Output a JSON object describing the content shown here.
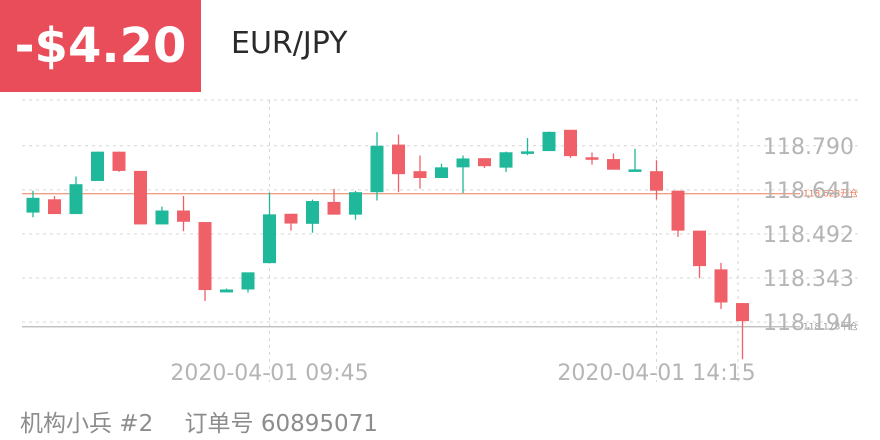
{
  "header": {
    "pnl": "-$4.20",
    "symbol": "EUR/JPY"
  },
  "footer": {
    "trader": "机构小兵 #2",
    "order_label": "订单号",
    "order_number": "60895071"
  },
  "colors": {
    "up": "#1fb89a",
    "down": "#ef6068",
    "badge": "#ea4d5a",
    "open_line": "#f0a08a",
    "close_line": "#b8b8b8",
    "grid": "#d6d6d6",
    "axis_text": "#b5b5b5"
  },
  "chart_data": {
    "type": "candlestick",
    "title": "",
    "xlabel": "",
    "ylabel": "",
    "ylim": [
      118.03,
      118.87
    ],
    "yticks": [
      118.79,
      118.641,
      118.492,
      118.343,
      118.194
    ],
    "ytick_labels": [
      "118.790",
      "118.641",
      "118.492",
      "118.343",
      "118.194"
    ],
    "xtick_labels": [
      "2020-04-01 09:45",
      "2020-04-01 14:15"
    ],
    "xtick_index": [
      11,
      29
    ],
    "grid": true,
    "reference_lines": [
      {
        "label": "118.628开仓",
        "value": 118.628,
        "role": "open"
      },
      {
        "label": "118.178平仓",
        "value": 118.178,
        "role": "close"
      }
    ],
    "candles": [
      {
        "o": 118.564,
        "h": 118.638,
        "l": 118.548,
        "c": 118.614
      },
      {
        "o": 118.609,
        "h": 118.62,
        "l": 118.559,
        "c": 118.559
      },
      {
        "o": 118.559,
        "h": 118.686,
        "l": 118.559,
        "c": 118.66
      },
      {
        "o": 118.671,
        "h": 118.77,
        "l": 118.671,
        "c": 118.77
      },
      {
        "o": 118.77,
        "h": 118.77,
        "l": 118.702,
        "c": 118.705
      },
      {
        "o": 118.705,
        "h": 118.705,
        "l": 118.524,
        "c": 118.524
      },
      {
        "o": 118.524,
        "h": 118.584,
        "l": 118.524,
        "c": 118.571
      },
      {
        "o": 118.571,
        "h": 118.62,
        "l": 118.501,
        "c": 118.533
      },
      {
        "o": 118.532,
        "h": 118.532,
        "l": 118.265,
        "c": 118.302
      },
      {
        "o": 118.294,
        "h": 118.307,
        "l": 118.294,
        "c": 118.304
      },
      {
        "o": 118.304,
        "h": 118.359,
        "l": 118.294,
        "c": 118.362
      },
      {
        "o": 118.393,
        "h": 118.632,
        "l": 118.393,
        "c": 118.558
      },
      {
        "o": 118.56,
        "h": 118.56,
        "l": 118.503,
        "c": 118.527
      },
      {
        "o": 118.526,
        "h": 118.608,
        "l": 118.496,
        "c": 118.603
      },
      {
        "o": 118.6,
        "h": 118.644,
        "l": 118.56,
        "c": 118.557
      },
      {
        "o": 118.557,
        "h": 118.637,
        "l": 118.54,
        "c": 118.633
      },
      {
        "o": 118.633,
        "h": 118.836,
        "l": 118.605,
        "c": 118.79
      },
      {
        "o": 118.794,
        "h": 118.828,
        "l": 118.633,
        "c": 118.694
      },
      {
        "o": 118.704,
        "h": 118.757,
        "l": 118.645,
        "c": 118.681
      },
      {
        "o": 118.681,
        "h": 118.729,
        "l": 118.681,
        "c": 118.717
      },
      {
        "o": 118.717,
        "h": 118.757,
        "l": 118.63,
        "c": 118.747
      },
      {
        "o": 118.748,
        "h": 118.748,
        "l": 118.715,
        "c": 118.721
      },
      {
        "o": 118.716,
        "h": 118.77,
        "l": 118.701,
        "c": 118.768
      },
      {
        "o": 118.769,
        "h": 118.816,
        "l": 118.758,
        "c": 118.771
      },
      {
        "o": 118.772,
        "h": 118.838,
        "l": 118.772,
        "c": 118.837
      },
      {
        "o": 118.844,
        "h": 118.844,
        "l": 118.749,
        "c": 118.755
      },
      {
        "o": 118.751,
        "h": 118.767,
        "l": 118.726,
        "c": 118.745
      },
      {
        "o": 118.745,
        "h": 118.764,
        "l": 118.71,
        "c": 118.709
      },
      {
        "o": 118.708,
        "h": 118.78,
        "l": 118.708,
        "c": 118.71
      },
      {
        "o": 118.704,
        "h": 118.741,
        "l": 118.608,
        "c": 118.638
      },
      {
        "o": 118.638,
        "h": 118.638,
        "l": 118.482,
        "c": 118.503
      },
      {
        "o": 118.503,
        "h": 118.503,
        "l": 118.342,
        "c": 118.383
      },
      {
        "o": 118.372,
        "h": 118.394,
        "l": 118.238,
        "c": 118.26
      },
      {
        "o": 118.258,
        "h": 118.258,
        "l": 118.068,
        "c": 118.197
      }
    ]
  }
}
